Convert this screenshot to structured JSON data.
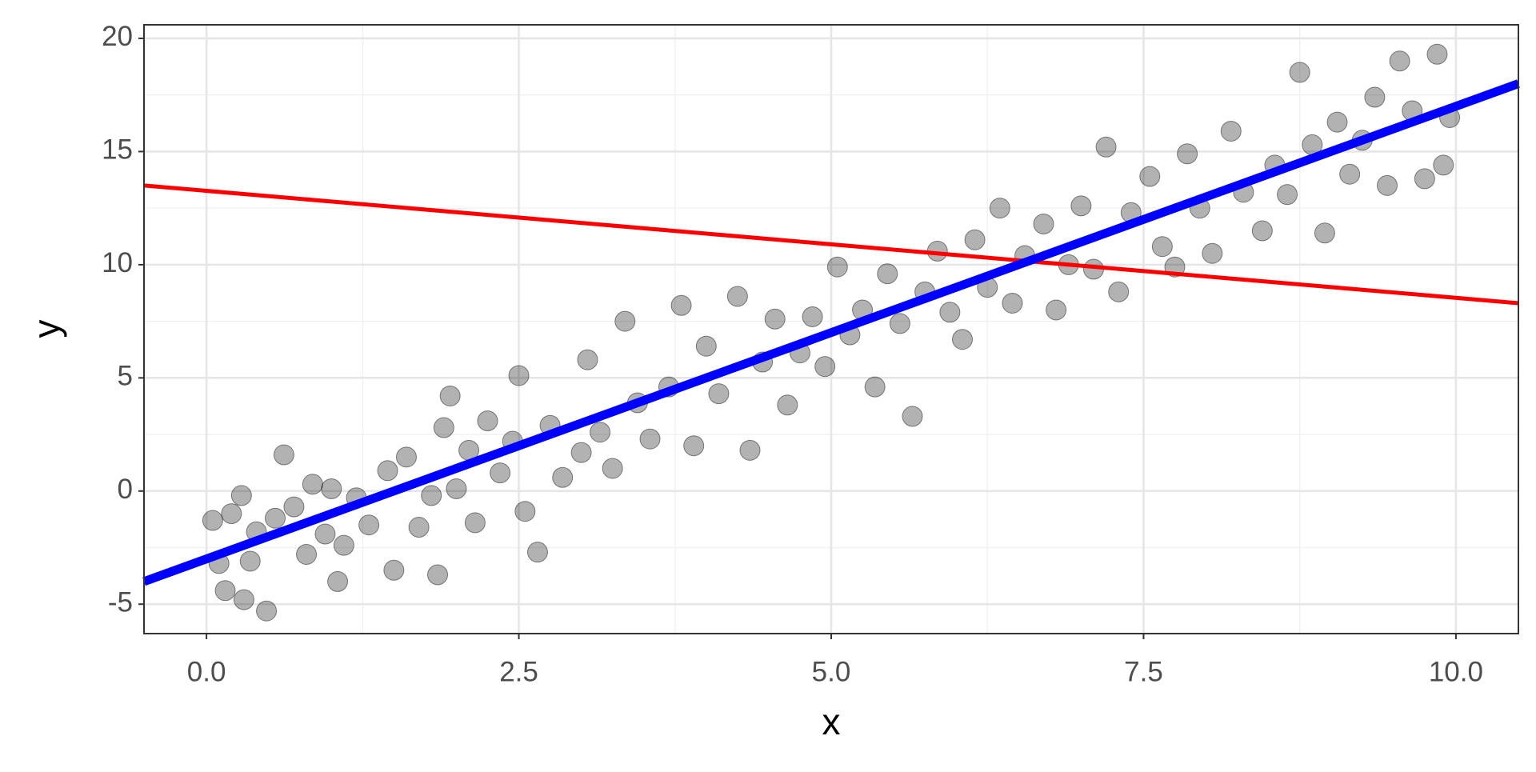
{
  "chart_data": {
    "type": "scatter",
    "xlabel": "x",
    "ylabel": "y",
    "xlim": [
      -0.5,
      10.5
    ],
    "ylim": [
      -6.3,
      20.6
    ],
    "xticks": [
      {
        "value": 0,
        "label": "0.0"
      },
      {
        "value": 2.5,
        "label": "2.5"
      },
      {
        "value": 5,
        "label": "5.0"
      },
      {
        "value": 7.5,
        "label": "7.5"
      },
      {
        "value": 10,
        "label": "10.0"
      }
    ],
    "yticks": [
      -5,
      0,
      5,
      10,
      15,
      20
    ],
    "minor_xticks": [
      1.25,
      3.75,
      6.25,
      8.75
    ],
    "minor_yticks": [
      -2.5,
      2.5,
      7.5,
      12.5,
      17.5
    ],
    "grid": true,
    "points": {
      "color": "#000000",
      "x": [
        0.05,
        0.1,
        0.15,
        0.2,
        0.28,
        0.3,
        0.35,
        0.4,
        0.48,
        0.55,
        0.62,
        0.7,
        0.8,
        0.85,
        0.95,
        1.0,
        1.05,
        1.1,
        1.2,
        1.3,
        1.45,
        1.5,
        1.6,
        1.7,
        1.8,
        1.85,
        1.9,
        1.95,
        2.0,
        2.1,
        2.15,
        2.25,
        2.35,
        2.45,
        2.5,
        2.55,
        2.65,
        2.75,
        2.85,
        3.0,
        3.05,
        3.15,
        3.25,
        3.35,
        3.45,
        3.55,
        3.7,
        3.8,
        3.9,
        4.0,
        4.1,
        4.25,
        4.35,
        4.45,
        4.55,
        4.65,
        4.75,
        4.85,
        4.95,
        5.05,
        5.15,
        5.25,
        5.35,
        5.45,
        5.55,
        5.65,
        5.75,
        5.85,
        5.95,
        6.05,
        6.15,
        6.25,
        6.35,
        6.45,
        6.55,
        6.7,
        6.8,
        6.9,
        7.0,
        7.1,
        7.2,
        7.3,
        7.4,
        7.55,
        7.65,
        7.75,
        7.85,
        7.95,
        8.05,
        8.2,
        8.3,
        8.45,
        8.55,
        8.65,
        8.75,
        8.85,
        8.95,
        9.05,
        9.15,
        9.25,
        9.35,
        9.45,
        9.55,
        9.65,
        9.75,
        9.85,
        9.9,
        9.95
      ],
      "y": [
        -1.3,
        -3.2,
        -4.4,
        -1.0,
        -0.2,
        -4.8,
        -3.1,
        -1.8,
        -5.3,
        -1.2,
        1.6,
        -0.7,
        -2.8,
        0.3,
        -1.9,
        0.1,
        -4.0,
        -2.4,
        -0.3,
        -1.5,
        0.9,
        -3.5,
        1.5,
        -1.6,
        -0.2,
        -3.7,
        2.8,
        4.2,
        0.1,
        1.8,
        -1.4,
        3.1,
        0.8,
        2.2,
        5.1,
        -0.9,
        -2.7,
        2.9,
        0.6,
        1.7,
        5.8,
        2.6,
        1.0,
        7.5,
        3.9,
        2.3,
        4.6,
        8.2,
        2.0,
        6.4,
        4.3,
        8.6,
        1.8,
        5.7,
        7.6,
        3.8,
        6.1,
        7.7,
        5.5,
        9.9,
        6.9,
        8.0,
        4.6,
        9.6,
        7.4,
        3.3,
        8.8,
        10.6,
        7.9,
        6.7,
        11.1,
        9.0,
        12.5,
        8.3,
        10.4,
        11.8,
        8.0,
        10.0,
        12.6,
        9.8,
        15.2,
        8.8,
        12.3,
        13.9,
        10.8,
        9.9,
        14.9,
        12.5,
        10.5,
        15.9,
        13.2,
        11.5,
        14.4,
        13.1,
        18.5,
        15.3,
        11.4,
        16.3,
        14.0,
        15.5,
        17.4,
        13.5,
        19.0,
        16.8,
        13.8,
        19.3,
        14.4,
        16.5
      ]
    },
    "lines": [
      {
        "color": "#ff0000",
        "x": [
          -0.5,
          10.5
        ],
        "y": [
          13.5,
          8.3
        ]
      },
      {
        "color": "#0000ff",
        "x": [
          -0.5,
          10.5
        ],
        "y": [
          -4.0,
          18.0
        ]
      }
    ]
  }
}
